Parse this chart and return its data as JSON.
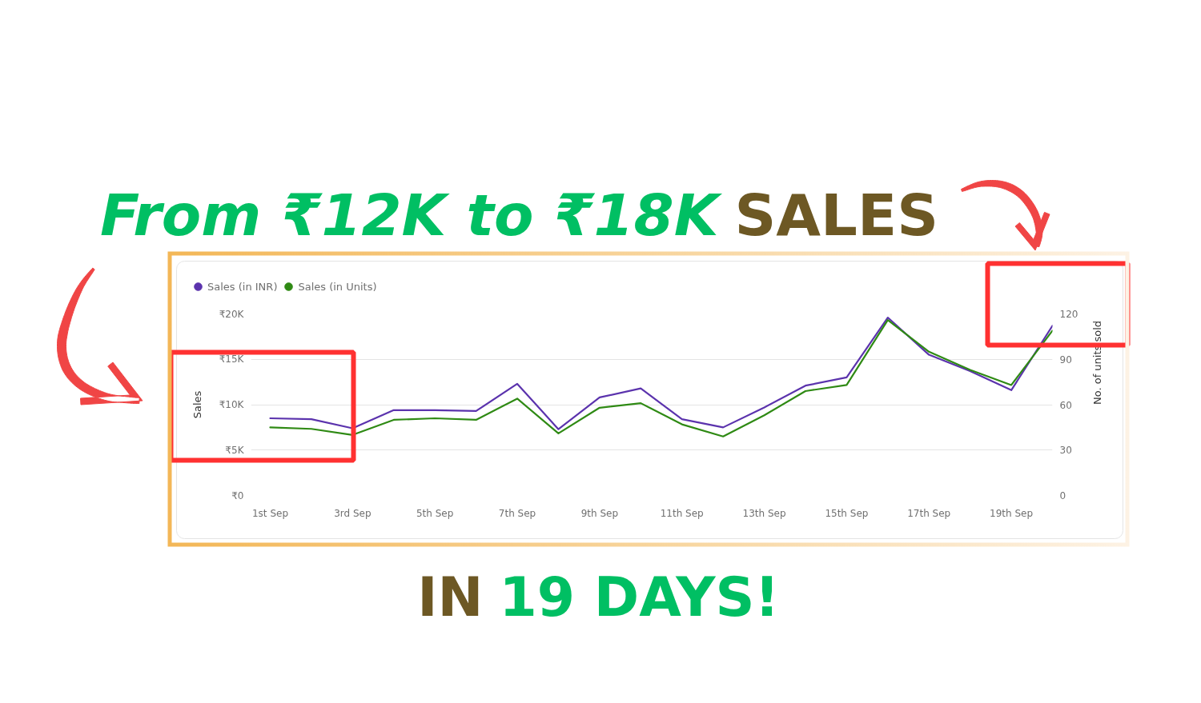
{
  "chart_data": {
    "type": "line",
    "title": "From ₹12K to ₹18K SALES",
    "annotations": [
      "IN 19 DAYS!"
    ],
    "ylabel": "Sales",
    "y2label": "No. of units sold",
    "categories": [
      "1st Sep",
      null,
      "3rd Sep",
      null,
      "5th Sep",
      null,
      "7th Sep",
      null,
      "9th Sep",
      null,
      "11th Sep",
      null,
      "13th Sep",
      null,
      "15th Sep",
      null,
      "17th Sep",
      null,
      "19th Sep",
      null
    ],
    "series": [
      {
        "name": "Sales (in INR)",
        "color": "#5b33ad",
        "values": [
          8500,
          8400,
          7400,
          9400,
          9400,
          9300,
          12300,
          7300,
          10800,
          11800,
          8400,
          7500,
          9700,
          12100,
          13000,
          19600,
          15500,
          13700,
          11600,
          18700
        ]
      },
      {
        "name": "Sales (in Units)",
        "color": "#2f8a14",
        "axis": "y2",
        "values": [
          45,
          44,
          40,
          50,
          51,
          50,
          64,
          41,
          58,
          61,
          47,
          39,
          53,
          69,
          73,
          116,
          95,
          83,
          73,
          109
        ]
      }
    ],
    "ylim": [
      0,
      20000
    ],
    "yticks": [
      {
        "value": 0,
        "label": "₹0"
      },
      {
        "value": 5000,
        "label": "₹5K"
      },
      {
        "value": 10000,
        "label": "₹10K"
      },
      {
        "value": 15000,
        "label": "₹15K"
      },
      {
        "value": 20000,
        "label": "₹20K"
      }
    ],
    "y2lim": [
      0,
      120
    ],
    "y2ticks": [
      0,
      30,
      60,
      90,
      120
    ],
    "grid": "y",
    "legend": "top left"
  }
}
